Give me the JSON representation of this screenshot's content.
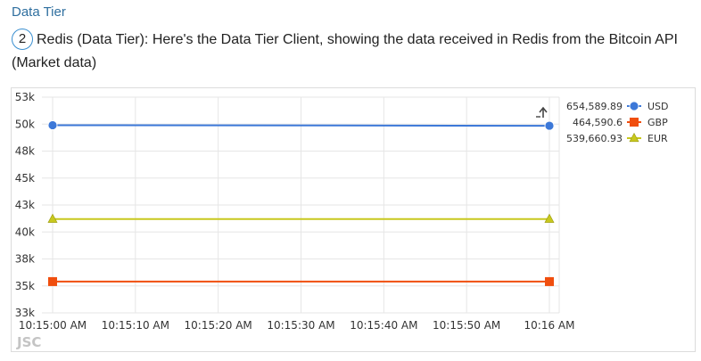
{
  "header": {
    "section_title": "Data Tier"
  },
  "step": {
    "number": "2",
    "text": "Redis (Data Tier): Here's the Data Tier Client, showing the data received in Redis from the Bitcoin API (Market data)"
  },
  "chart_data": {
    "type": "line",
    "title": "",
    "xlabel": "",
    "ylabel": "",
    "x": [
      "10:15:00 AM",
      "10:16 AM"
    ],
    "x_tick_labels": [
      "10:15:00 AM",
      "10:15:10 AM",
      "10:15:20 AM",
      "10:15:30 AM",
      "10:15:40 AM",
      "10:15:50 AM",
      "10:16 AM"
    ],
    "y_tick_labels": [
      "53k",
      "50k",
      "48k",
      "45k",
      "43k",
      "40k",
      "38k",
      "35k",
      "33k"
    ],
    "ylim": [
      33000,
      53000
    ],
    "grid": true,
    "legend_position": "right",
    "series": [
      {
        "name": "USD",
        "legend_value": "654,589.89",
        "values": [
          50400,
          50350
        ],
        "color": "#3c78d8",
        "marker": "circle"
      },
      {
        "name": "GBP",
        "legend_value": "464,590.6",
        "values": [
          35900,
          35900
        ],
        "color": "#f04e0e",
        "marker": "square"
      },
      {
        "name": "EUR",
        "legend_value": "539,660.93",
        "values": [
          41700,
          41700
        ],
        "color": "#c8c81e",
        "marker": "triangle"
      }
    ],
    "watermark": "JSC",
    "reset_icon": "reset-zoom-icon"
  }
}
